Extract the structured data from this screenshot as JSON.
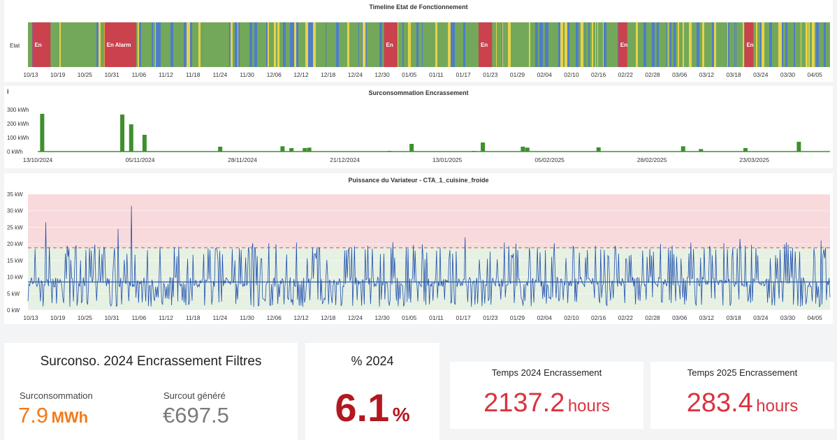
{
  "timeline": {
    "title": "Timeline Etat de Fonctionnement",
    "row_label": "Etat",
    "x_ticks": [
      "10/13",
      "10/19",
      "10/25",
      "10/31",
      "11/06",
      "11/12",
      "11/18",
      "11/24",
      "11/30",
      "12/06",
      "12/12",
      "12/18",
      "12/24",
      "12/30",
      "01/05",
      "01/11",
      "01/17",
      "01/23",
      "01/29",
      "02/04",
      "02/10",
      "02/16",
      "02/22",
      "02/28",
      "03/06",
      "03/12",
      "03/18",
      "03/24",
      "03/30",
      "04/05"
    ],
    "state_colors": {
      "green": "#73a85a",
      "yellow": "#e8d24a",
      "blue": "#4f7dc7",
      "red": "#c9424d"
    },
    "alarm_blocks": [
      {
        "label": "En",
        "start": "10/14",
        "end": "10/18"
      },
      {
        "label": "En Alarm",
        "start": "10/30",
        "end": "11/06"
      },
      {
        "label": "En",
        "start": "12/31",
        "end": "01/03"
      },
      {
        "label": "En",
        "start": "01/21",
        "end": "01/24"
      },
      {
        "label": "En",
        "start": "02/21",
        "end": "02/23"
      },
      {
        "label": "En",
        "start": "03/21",
        "end": "03/23"
      }
    ]
  },
  "surconso_chart": {
    "chart_data": {
      "type": "bar",
      "title": "Surconsommation Encrassement",
      "y_ticks": [
        "300 kWh",
        "200 kWh",
        "100 kWh",
        "0 kWh"
      ],
      "ylim": [
        0,
        300
      ],
      "x_ticks": [
        "13/10/2024",
        "05/11/2024",
        "28/11/2024",
        "21/12/2024",
        "13/01/2025",
        "05/02/2025",
        "28/02/2025",
        "23/03/2025"
      ],
      "x_range": [
        "2024-10-13",
        "2025-04-09"
      ],
      "bar_color": "#3f8f2e",
      "points": [
        {
          "date": "2024-10-14",
          "value": 270
        },
        {
          "date": "2024-11-01",
          "value": 265
        },
        {
          "date": "2024-11-03",
          "value": 195
        },
        {
          "date": "2024-11-06",
          "value": 120
        },
        {
          "date": "2024-11-23",
          "value": 35
        },
        {
          "date": "2024-12-07",
          "value": 38
        },
        {
          "date": "2024-12-09",
          "value": 25
        },
        {
          "date": "2024-12-12",
          "value": 25
        },
        {
          "date": "2024-12-13",
          "value": 28
        },
        {
          "date": "2024-12-31",
          "value": 5
        },
        {
          "date": "2025-01-05",
          "value": 55
        },
        {
          "date": "2025-01-19",
          "value": 5
        },
        {
          "date": "2025-01-21",
          "value": 65
        },
        {
          "date": "2025-01-30",
          "value": 35
        },
        {
          "date": "2025-01-31",
          "value": 28
        },
        {
          "date": "2025-02-16",
          "value": 30
        },
        {
          "date": "2025-03-07",
          "value": 38
        },
        {
          "date": "2025-03-11",
          "value": 18
        },
        {
          "date": "2025-03-21",
          "value": 25
        },
        {
          "date": "2025-04-02",
          "value": 70
        }
      ]
    },
    "info_icon": "info-icon"
  },
  "puissance_chart": {
    "chart_data": {
      "type": "line",
      "title": "Puissance du Variateur - CTA_1_cuisine_froide",
      "y_ticks": [
        "35 kW",
        "30 kW",
        "25 kW",
        "20 kW",
        "15 kW",
        "10 kW",
        "5 kW",
        "0 kW"
      ],
      "ylim": [
        0,
        35
      ],
      "threshold": 18.8,
      "x_ticks": [
        "10/13",
        "10/19",
        "10/25",
        "10/31",
        "11/06",
        "11/12",
        "11/18",
        "11/24",
        "11/30",
        "12/06",
        "12/12",
        "12/18",
        "12/24",
        "12/30",
        "01/05",
        "01/11",
        "01/17",
        "01/23",
        "01/29",
        "02/04",
        "02/10",
        "02/16",
        "02/22",
        "02/28",
        "03/06",
        "03/12",
        "03/18",
        "03/24",
        "03/30",
        "04/05"
      ],
      "line_color": "#1f4fad",
      "zone_high_color": "#f8dadc",
      "zone_low_color": "#e6f1e3",
      "threshold_color": "#e0595a",
      "baseline_value": 8.5,
      "peaks": [
        {
          "date": "10/17",
          "value": 26.5
        },
        {
          "date": "11/02",
          "value": 24.5
        },
        {
          "date": "11/05",
          "value": 31.5
        },
        {
          "date": "01/18",
          "value": 22
        },
        {
          "date": "03/20",
          "value": 21.5
        },
        {
          "date": "04/07",
          "value": 21
        }
      ]
    }
  },
  "stats": {
    "surconso": {
      "title": "Surconso. 2024 Encrassement Filtres",
      "label1": "Surconsommation",
      "value1": "7.9",
      "unit1": "MWh",
      "label2": "Surcout généré",
      "value2": "€697.5",
      "color1": "#f27a1a",
      "color2": "#7a7a7a"
    },
    "pct": {
      "title": "% 2024",
      "value": "6.1",
      "unit": "%",
      "color": "#b3181f"
    },
    "temps2024": {
      "title": "Temps 2024 Encrassement",
      "value": "2137.2",
      "unit": "hours",
      "color": "#d9343f"
    },
    "temps2025": {
      "title": "Temps 2025 Encrassement",
      "value": "283.4",
      "unit": "hours",
      "color": "#d9343f"
    }
  }
}
